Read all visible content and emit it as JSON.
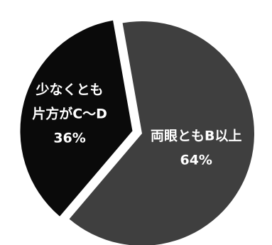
{
  "chart_data": {
    "type": "pie",
    "slices": [
      {
        "label_lines": [
          "両眼ともB以上",
          "64%"
        ],
        "value": 64,
        "color": "#3f3f3f"
      },
      {
        "label_lines": [
          "少なくとも",
          "片方がC～D",
          "36%"
        ],
        "value": 36,
        "color": "#0a0a0a",
        "exploded": true
      }
    ]
  }
}
